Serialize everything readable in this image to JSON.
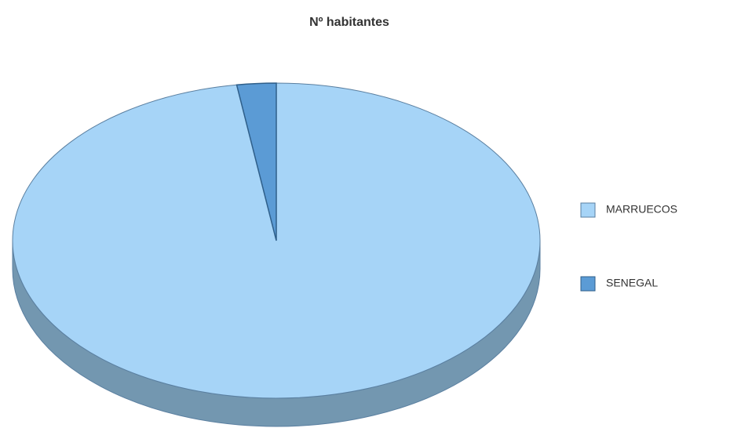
{
  "chart_data": {
    "type": "pie",
    "title": "Nº habitantes",
    "categories": [
      "MARRUECOS",
      "SENEGAL"
    ],
    "values": [
      97.6,
      2.4
    ],
    "colors": [
      "#a6d4f7",
      "#5b9bd5"
    ],
    "legend": "right"
  }
}
